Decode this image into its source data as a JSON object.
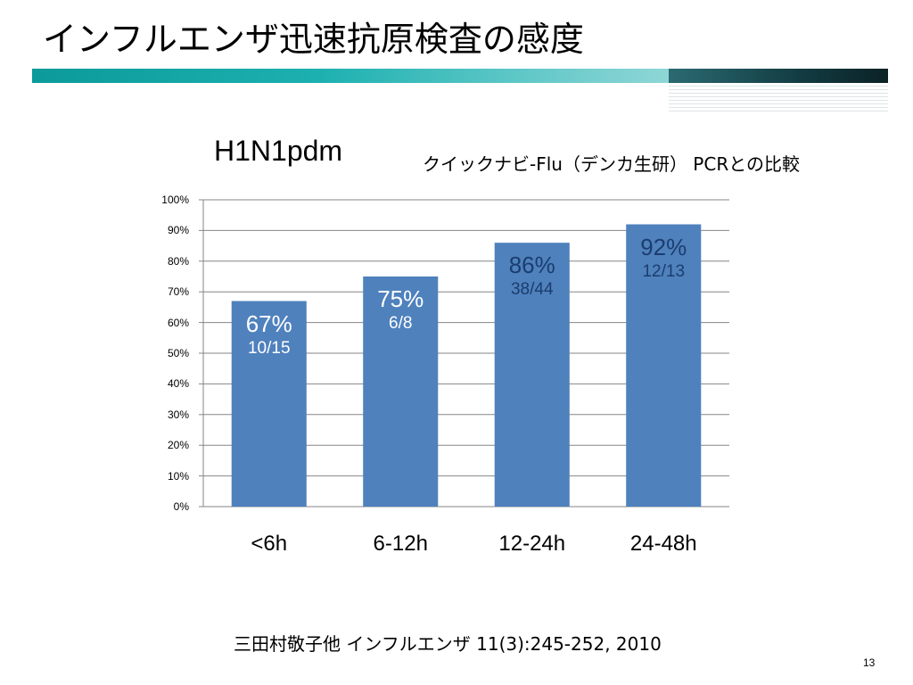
{
  "slide": {
    "title": "インフルエンザ迅速抗原検査の感度",
    "series_title": "H1N1pdm",
    "subtitle": "クイックナビ-Flu（デンカ生研） PCRとの比較",
    "citation": "三田村敬子他 インフルエンザ 11(3):245-252, 2010",
    "page_number": "13"
  },
  "chart_data": {
    "type": "bar",
    "categories": [
      "<6h",
      "6-12h",
      "12-24h",
      "24-48h"
    ],
    "values": [
      67,
      75,
      86,
      92
    ],
    "value_labels": [
      "67%",
      "75%",
      "86%",
      "92%"
    ],
    "fraction_labels": [
      "10/15",
      "6/8",
      "38/44",
      "12/13"
    ],
    "ylim": [
      0,
      100
    ],
    "ytick_labels": [
      "0%",
      "10%",
      "20%",
      "30%",
      "40%",
      "50%",
      "60%",
      "70%",
      "80%",
      "90%",
      "100%"
    ],
    "grid": true,
    "bar_color": "#4f81bd",
    "grid_color": "#868686"
  }
}
